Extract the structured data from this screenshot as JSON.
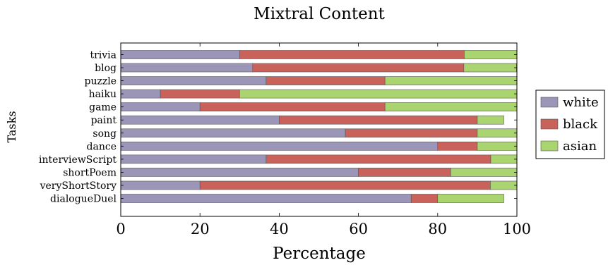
{
  "chart_data": {
    "type": "bar",
    "orientation": "horizontal",
    "stacked": true,
    "title": "Mixtral Content",
    "xlabel": "Percentage",
    "ylabel": "Tasks",
    "xlim": [
      0,
      100
    ],
    "xticks": [
      "0",
      "20",
      "40",
      "60",
      "80",
      "100"
    ],
    "categories": [
      "trivia",
      "blog",
      "puzzle",
      "haiku",
      "game",
      "paint",
      "song",
      "dance",
      "interviewScript",
      "shortPoem",
      "veryShortStory",
      "dialogueDuel"
    ],
    "series": [
      {
        "name": "white",
        "color": "#9b96b8",
        "values": [
          30,
          33.3,
          36.7,
          10,
          20,
          40,
          56.7,
          80,
          36.7,
          60,
          20,
          73.3
        ]
      },
      {
        "name": "black",
        "color": "#c8625b",
        "values": [
          56.7,
          53.3,
          30,
          20,
          46.7,
          50,
          33.3,
          10,
          56.7,
          23.3,
          73.3,
          6.7
        ]
      },
      {
        "name": "asian",
        "color": "#a9d46f",
        "values": [
          13.3,
          13.3,
          33.3,
          70,
          33.3,
          6.7,
          10,
          10,
          6.6,
          16.7,
          6.7,
          16.7
        ]
      }
    ],
    "legend_position": "right",
    "grid": false
  }
}
